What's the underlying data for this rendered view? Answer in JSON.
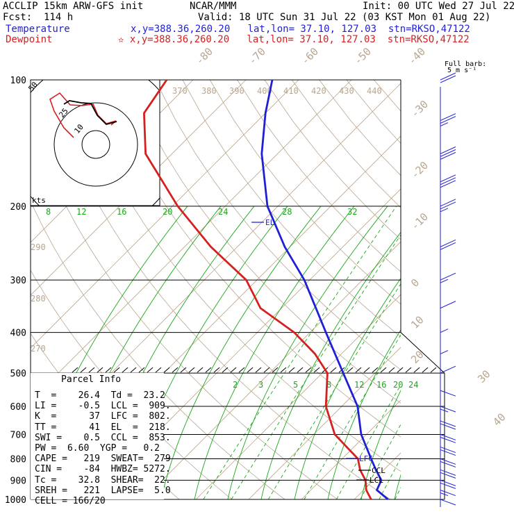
{
  "header": {
    "model": "ACCLIP 15km ARW-GFS init",
    "source": "NCAR/MMM",
    "init": "Init: 00 UTC Wed 27 Jul 22",
    "fcst": "Fcst:  114 h",
    "valid": "Valid: 18 UTC Sun 31 Jul 22 (03 KST Mon 01 Aug 22)",
    "temp_label": "Temperature",
    "temp_loc": "x,y=388.36,260.20   lat,lon= 37.10, 127.03  stn=RKSO,47122",
    "dew_label": "Dewpoint",
    "dew_loc": "✫ x,y=388.36,260.20   lat,lon= 37.10, 127.03  stn=RKSO,47122"
  },
  "barb_legend": {
    "line1": "Full barb:",
    "line2": "5 m s⁻¹"
  },
  "hodograph": {
    "unit": "kts",
    "rings": [
      "10",
      "25",
      "50"
    ]
  },
  "parcel_info": {
    "title": "Parcel Info",
    "rows": [
      "T  =    26.4  Td =  23.2",
      "LI =    -0.5  LCL =  909.",
      "K  =      37  LFC =  802.",
      "TT =      41  EL  =  218.",
      "SWI =    0.5  CCL =  853.",
      "PW =  6.60  YGP =   0.2",
      "CAPE =   219  SWEAT=  279",
      "CIN =    -84  HWBZ= 5272.",
      "Tc =    32.8  SHEAR=  22.",
      "SREH =   221  LAPSE=  5.0",
      "CELL = 166/20"
    ]
  },
  "levels": {
    "el": "EL",
    "lfc": "LFC",
    "ccl": "CCL",
    "lcl": "LCL"
  },
  "colors": {
    "temperature": "#1f1fd6",
    "dewpoint": "#d61f1f",
    "isotherm": "#b8a690",
    "mixing_ratio": "#1aa81a",
    "barb": "#1f1fd6"
  },
  "chart_data": {
    "type": "line",
    "title": "",
    "pressure_levels": [
      100,
      200,
      300,
      400,
      500,
      600,
      700,
      800,
      900,
      1000
    ],
    "pressure_labels": [
      "100",
      "200",
      "300",
      "400",
      "500",
      "600",
      "700",
      "800",
      "900",
      "1000"
    ],
    "isotherm_labels": [
      "-80",
      "-70",
      "-60",
      "-50",
      "-40",
      "-30",
      "-20",
      "-10",
      "0",
      "10",
      "20",
      "30",
      "40"
    ],
    "theta_labels": [
      "370",
      "380",
      "390",
      "400",
      "410",
      "420",
      "430",
      "440",
      "290",
      "280",
      "270"
    ],
    "mixing_ratio_upper": [
      "8",
      "12",
      "16",
      "20",
      "24",
      "28",
      "32"
    ],
    "mixing_ratio_lower": [
      "2",
      "3",
      "5",
      "8",
      "12",
      "16",
      "20",
      "24"
    ],
    "series": [
      {
        "name": "Temperature",
        "p": [
          1000,
          950,
          900,
          850,
          800,
          700,
          600,
          500,
          400,
          300,
          250,
          200,
          150,
          120,
          100
        ],
        "t": [
          26.4,
          22.5,
          21.5,
          18.5,
          15.5,
          9,
          3,
          -6,
          -17,
          -31,
          -41,
          -52,
          -63,
          -70,
          -75
        ]
      },
      {
        "name": "Dewpoint",
        "p": [
          1000,
          950,
          900,
          850,
          800,
          700,
          600,
          500,
          450,
          400,
          350,
          300,
          250,
          200,
          150,
          120,
          100
        ],
        "t": [
          23.2,
          20.5,
          18.5,
          15.5,
          13,
          4,
          -3,
          -9,
          -15,
          -23,
          -34,
          -42,
          -55,
          -69,
          -85,
          -93,
          -95
        ]
      }
    ],
    "barbs_kt": [
      {
        "p": 1000,
        "spd": 10
      },
      {
        "p": 950,
        "spd": 15
      },
      {
        "p": 900,
        "spd": 20
      },
      {
        "p": 850,
        "spd": 20
      },
      {
        "p": 800,
        "spd": 20
      },
      {
        "p": 750,
        "spd": 20
      },
      {
        "p": 700,
        "spd": 20
      },
      {
        "p": 650,
        "spd": 20
      },
      {
        "p": 600,
        "spd": 15
      },
      {
        "p": 550,
        "spd": 10
      },
      {
        "p": 500,
        "spd": 10
      },
      {
        "p": 450,
        "spd": 5
      },
      {
        "p": 400,
        "spd": 5
      },
      {
        "p": 350,
        "spd": 10
      },
      {
        "p": 300,
        "spd": 15
      },
      {
        "p": 250,
        "spd": 20
      },
      {
        "p": 200,
        "spd": 25
      },
      {
        "p": 175,
        "spd": 30
      },
      {
        "p": 150,
        "spd": 30
      },
      {
        "p": 125,
        "spd": 25
      },
      {
        "p": 100,
        "spd": 20
      }
    ]
  }
}
